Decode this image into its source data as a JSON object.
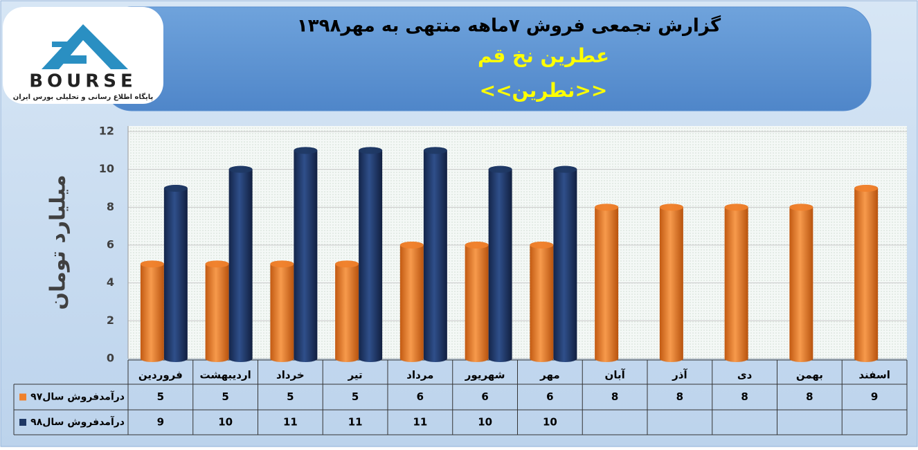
{
  "logo": {
    "name": "BOURSE",
    "tagline": "پایگاه اطلاع رسانی و تحلیلی بورس ایران"
  },
  "chart_data": {
    "type": "bar",
    "title": "گزارش تجمعی فروش ۷ماهه منتهی به مهر۱۳۹۸",
    "subtitle": "عطرین نخ قم",
    "subtitle2": "<<نطرین>>",
    "y_label": "میلیارد تومان",
    "categories": [
      "فروردین",
      "اردیبهشت",
      "خرداد",
      "تیر",
      "مرداد",
      "شهریور",
      "مهر",
      "آبان",
      "آذر",
      "دی",
      "بهمن",
      "اسفند"
    ],
    "series": [
      {
        "name": "درآمدفروش سال۹۷",
        "color": "#f0812c",
        "values": [
          5,
          5,
          5,
          5,
          6,
          6,
          6,
          8,
          8,
          8,
          8,
          9
        ]
      },
      {
        "name": "درآمدفروش سال۹۸",
        "color": "#1f3864",
        "values": [
          9,
          10,
          11,
          11,
          11,
          10,
          10,
          null,
          null,
          null,
          null,
          null
        ]
      }
    ],
    "ylim": [
      0,
      12
    ],
    "yticks": [
      0,
      2,
      4,
      6,
      8,
      10,
      12
    ],
    "grid": true
  }
}
